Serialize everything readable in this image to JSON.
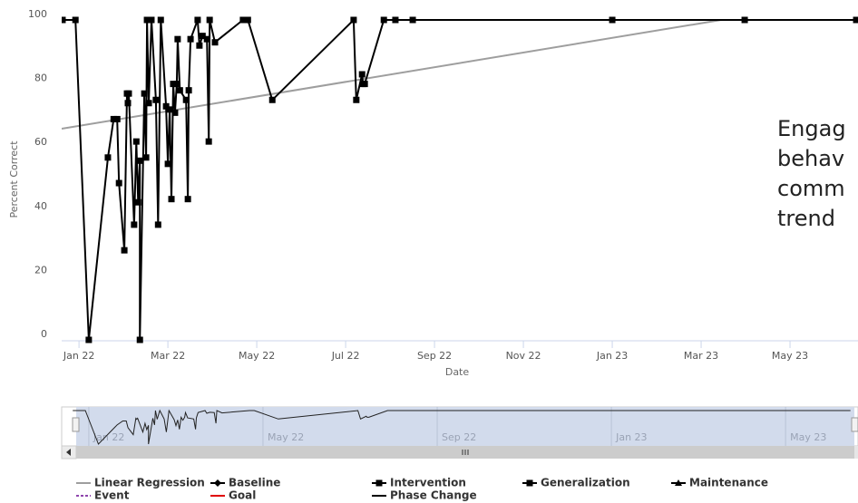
{
  "chart_data": {
    "type": "line",
    "x_label": "Date",
    "y_label": "Percent Correct",
    "annotation": [
      "Engag",
      "behav",
      "comm",
      "trend"
    ],
    "xlim": [
      -0.39,
      17.53
    ],
    "xticks": [
      {
        "value": 0,
        "label": "Jan 22"
      },
      {
        "value": 2,
        "label": "Mar 22"
      },
      {
        "value": 4,
        "label": "May 22"
      },
      {
        "value": 6,
        "label": "Jul 22"
      },
      {
        "value": 8,
        "label": "Sep 22"
      },
      {
        "value": 10,
        "label": "Nov 22"
      },
      {
        "value": 12,
        "label": "Jan 23"
      },
      {
        "value": 14,
        "label": "Mar 23"
      },
      {
        "value": 16,
        "label": "May 23"
      }
    ],
    "ylim": [
      0,
      100
    ],
    "yticks": [
      0,
      20,
      40,
      60,
      80,
      100
    ],
    "series": [
      {
        "name": "Linear Regression",
        "color": "#9e9e9e",
        "x": [
          -0.39,
          14.45
        ],
        "values": [
          66,
          100
        ]
      },
      {
        "name": "Intervention",
        "color": "#000000",
        "x": [
          -0.37,
          -0.08,
          0.22,
          0.65,
          0.78,
          0.86,
          0.9,
          1.02,
          1.08,
          1.1,
          1.12,
          1.24,
          1.29,
          1.33,
          1.37,
          1.37,
          1.47,
          1.51,
          1.53,
          1.57,
          1.63,
          1.73,
          1.78,
          1.84,
          1.96,
          2.0,
          2.04,
          2.08,
          2.12,
          2.16,
          2.2,
          2.22,
          2.27,
          2.41,
          2.45,
          2.47,
          2.51,
          2.67,
          2.71,
          2.78,
          2.88,
          2.92,
          2.94,
          3.06,
          3.69,
          3.8,
          4.35,
          6.18,
          6.24,
          6.37,
          6.39,
          6.43,
          6.86,
          7.12,
          7.51,
          12.0,
          14.98,
          17.49
        ],
        "values": [
          100,
          100,
          0,
          57,
          69,
          69,
          49,
          28,
          77,
          74,
          77,
          36,
          62,
          43,
          56,
          0,
          77,
          57,
          100,
          74,
          100,
          75,
          36,
          100,
          73,
          55,
          72,
          44,
          80,
          71,
          80,
          94,
          78,
          75,
          44,
          78,
          94,
          100,
          92,
          95,
          94,
          62,
          100,
          93,
          100,
          100,
          75,
          100,
          75,
          83,
          80,
          80,
          100,
          100,
          100,
          100,
          100,
          100
        ]
      }
    ],
    "navigator": {
      "xlim": [
        -0.29,
        17.58
      ],
      "xticks": [
        {
          "value": 0,
          "label": "Jan 22"
        },
        {
          "value": 4,
          "label": "May 22"
        },
        {
          "value": 8,
          "label": "Sep 22"
        },
        {
          "value": 12,
          "label": "Jan 23"
        },
        {
          "value": 16,
          "label": "May 23"
        }
      ]
    },
    "legend": [
      {
        "name": "Linear Regression",
        "color": "#9e9e9e",
        "symbol": "line"
      },
      {
        "name": "Baseline",
        "color": "#000000",
        "symbol": "diamond"
      },
      {
        "name": "Intervention",
        "color": "#000000",
        "symbol": "square"
      },
      {
        "name": "Generalization",
        "color": "#000000",
        "symbol": "square"
      },
      {
        "name": "Maintenance",
        "color": "#000000",
        "symbol": "triangle"
      },
      {
        "name": "Event",
        "color": "#8e44ad",
        "symbol": "dash"
      },
      {
        "name": "Goal",
        "color": "#e00000",
        "symbol": "line"
      },
      {
        "name": "Phase Change",
        "color": "#000000",
        "symbol": "line"
      }
    ]
  }
}
